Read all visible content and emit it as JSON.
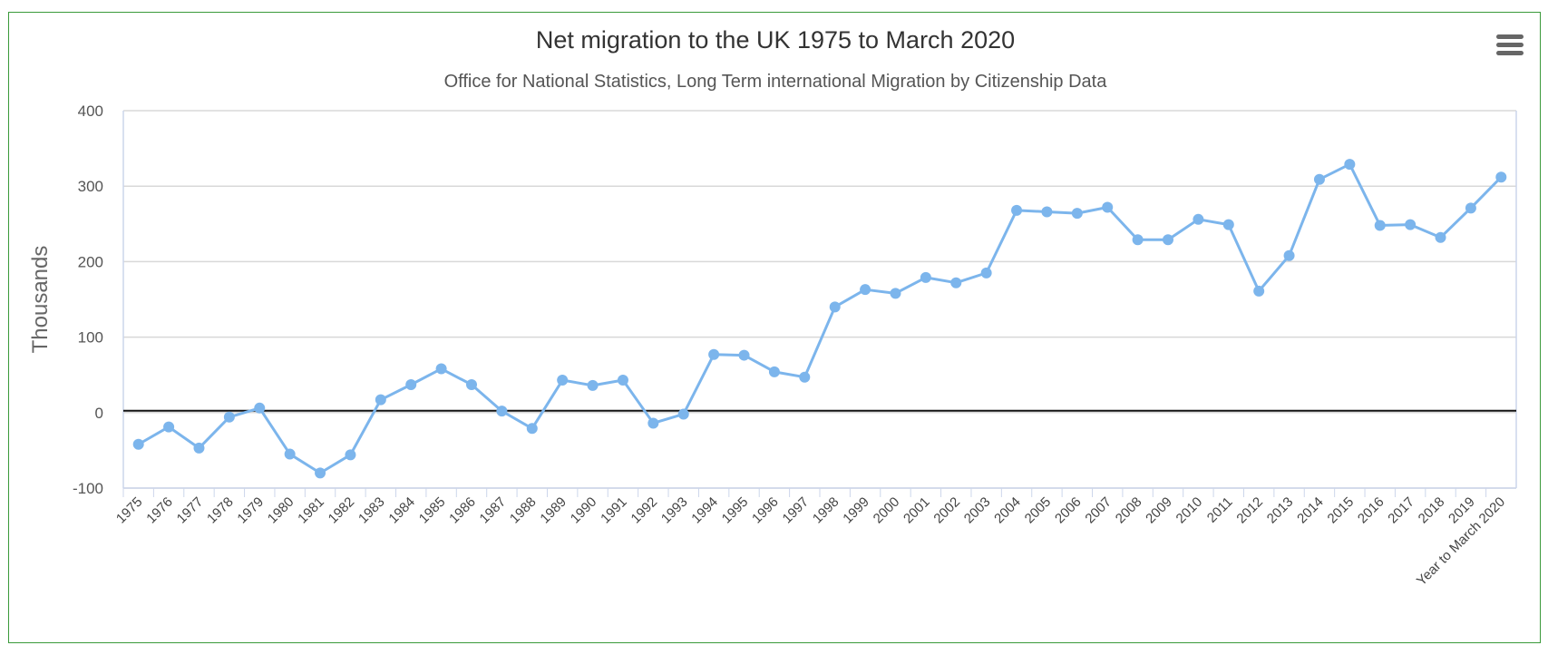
{
  "chart_data": {
    "type": "line",
    "title": "Net migration to the UK 1975 to March 2020",
    "subtitle": "Office for National Statistics, Long Term international Migration by Citizenship Data",
    "xlabel": "",
    "ylabel": "Thousands",
    "ylim": [
      -100,
      400
    ],
    "yticks": [
      "400",
      "300",
      "200",
      "100",
      "0",
      "-100"
    ],
    "ytick_values": [
      400,
      300,
      200,
      100,
      0,
      -100
    ],
    "grid": true,
    "categories": [
      "1975",
      "1976",
      "1977",
      "1978",
      "1979",
      "1980",
      "1981",
      "1982",
      "1983",
      "1984",
      "1985",
      "1986",
      "1987",
      "1988",
      "1989",
      "1990",
      "1991",
      "1992",
      "1993",
      "1994",
      "1995",
      "1996",
      "1997",
      "1998",
      "1999",
      "2000",
      "2001",
      "2002",
      "2003",
      "2004",
      "2005",
      "2006",
      "2007",
      "2008",
      "2009",
      "2010",
      "2011",
      "2012",
      "2013",
      "2014",
      "2015",
      "2016",
      "2017",
      "2018",
      "2019",
      "Year to March 2020"
    ],
    "series": [
      {
        "name": "Net migration",
        "color": "#7cb5ec",
        "values": [
          -42,
          -19,
          -47,
          -6,
          6,
          -55,
          -80,
          -56,
          17,
          37,
          58,
          37,
          2,
          -21,
          43,
          36,
          43,
          -14,
          -2,
          77,
          76,
          54,
          47,
          140,
          163,
          158,
          179,
          172,
          185,
          268,
          266,
          264,
          272,
          229,
          229,
          256,
          249,
          161,
          208,
          309,
          329,
          248,
          249,
          232,
          271,
          312
        ]
      }
    ]
  },
  "menu": {
    "icon": "hamburger-menu-icon"
  }
}
